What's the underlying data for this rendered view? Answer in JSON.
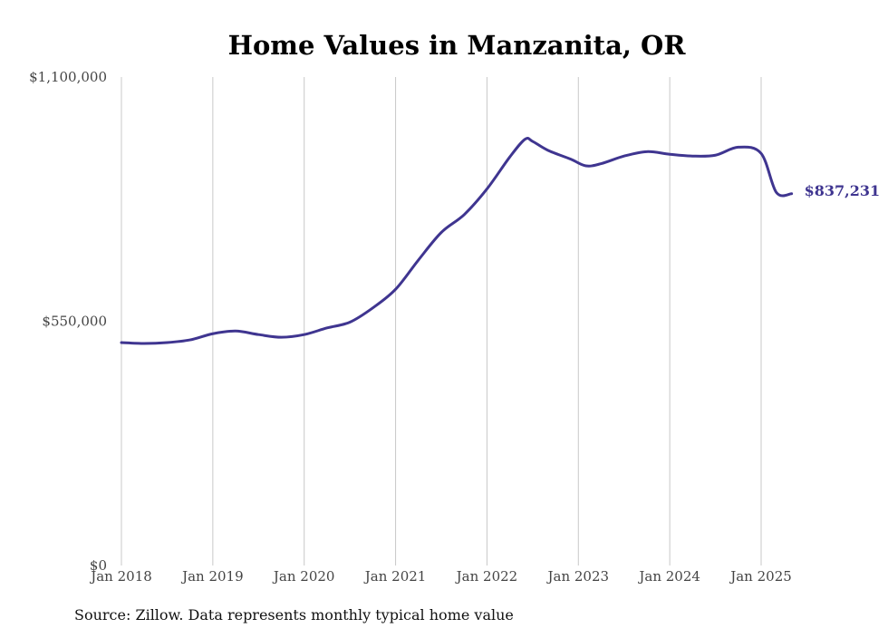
{
  "chart_data": {
    "type": "line",
    "title": "Home Values in Manzanita, OR",
    "xlabel": "",
    "ylabel": "",
    "ylim": [
      0,
      1100000
    ],
    "xlim": [
      "2018-01",
      "2025-05"
    ],
    "y_ticks": [
      {
        "value": 0,
        "label": "$0"
      },
      {
        "value": 550000,
        "label": "$550,000"
      },
      {
        "value": 1100000,
        "label": "$1,100,000"
      }
    ],
    "x_ticks": [
      {
        "value": "2018-01",
        "label": "Jan 2018"
      },
      {
        "value": "2019-01",
        "label": "Jan 2019"
      },
      {
        "value": "2020-01",
        "label": "Jan 2020"
      },
      {
        "value": "2021-01",
        "label": "Jan 2021"
      },
      {
        "value": "2022-01",
        "label": "Jan 2022"
      },
      {
        "value": "2023-01",
        "label": "Jan 2023"
      },
      {
        "value": "2024-01",
        "label": "Jan 2024"
      },
      {
        "value": "2025-01",
        "label": "Jan 2025"
      }
    ],
    "grid": {
      "vertical": true,
      "horizontal": false
    },
    "line_color": "#3f3590",
    "end_label": "$837,231",
    "series": [
      {
        "x": [
          "2018-01",
          "2018-04",
          "2018-07",
          "2018-10",
          "2019-01",
          "2019-04",
          "2019-07",
          "2019-10",
          "2020-01",
          "2020-04",
          "2020-07",
          "2020-10",
          "2021-01",
          "2021-04",
          "2021-07",
          "2021-10",
          "2022-01",
          "2022-04",
          "2022-06",
          "2022-07",
          "2022-09",
          "2022-12",
          "2023-02",
          "2023-04",
          "2023-07",
          "2023-10",
          "2024-01",
          "2024-04",
          "2024-07",
          "2024-10",
          "2025-01",
          "2025-03",
          "2025-05"
        ],
        "y": [
          502000,
          500000,
          502000,
          508000,
          522000,
          528000,
          520000,
          514000,
          520000,
          535000,
          548000,
          580000,
          622000,
          688000,
          750000,
          790000,
          848000,
          920000,
          960000,
          955000,
          935000,
          915000,
          900000,
          905000,
          922000,
          932000,
          926000,
          922000,
          924000,
          942000,
          928000,
          840000,
          837231
        ]
      }
    ],
    "source": "Source: Zillow. Data represents monthly typical home value"
  }
}
